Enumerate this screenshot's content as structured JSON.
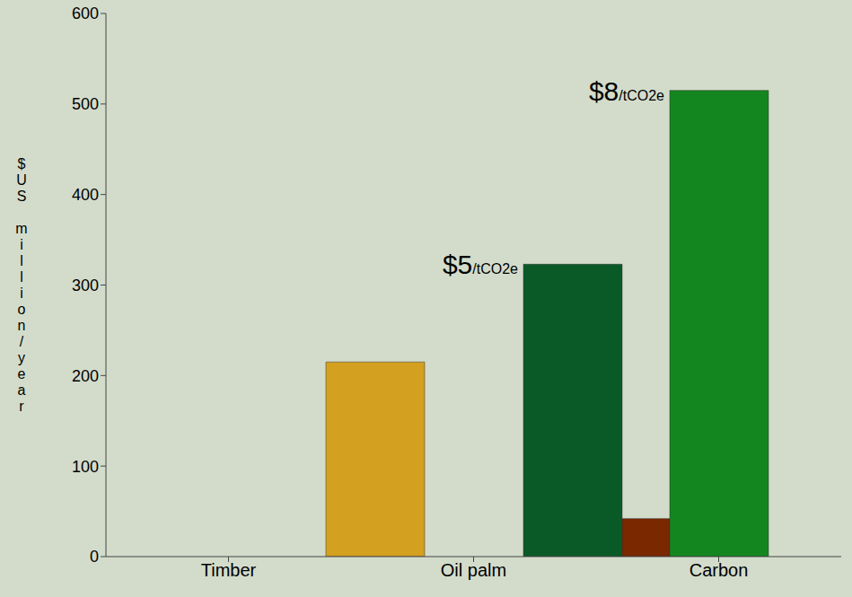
{
  "chart_data": {
    "type": "bar",
    "categories": [
      "Timber",
      "Oil palm",
      "Carbon"
    ],
    "y_label": "$US million/year",
    "ylim": [
      0,
      600
    ],
    "yticks": [
      0,
      100,
      200,
      300,
      400,
      500,
      600
    ],
    "grid": false,
    "stacked": false,
    "series": [
      {
        "values": [
          215,
          42,
          null
        ],
        "colors": [
          "#d4a020",
          "#7a2800",
          "#0a5a28"
        ]
      },
      {
        "name": "$8/tCO2e",
        "color": "#14861f",
        "values": [
          null,
          null,
          515
        ]
      },
      {
        "name": "$5/tCO2e",
        "color": "#0a5a28",
        "values": [
          null,
          null,
          323
        ]
      }
    ]
  }
}
